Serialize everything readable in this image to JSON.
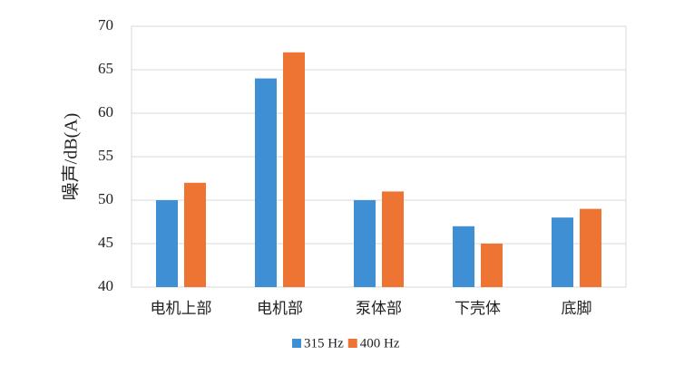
{
  "chart_data": {
    "type": "bar",
    "y_label": "噪声/dB(A)",
    "categories": [
      "电机上部",
      "电机部",
      "泵体部",
      "下壳体",
      "底脚"
    ],
    "series": [
      {
        "name": "315 Hz",
        "color": "#3f8fd4",
        "values": [
          50,
          64,
          50,
          47,
          48
        ]
      },
      {
        "name": "400 Hz",
        "color": "#ed7433",
        "values": [
          52,
          67,
          51,
          45,
          49
        ]
      }
    ],
    "ylim": [
      40,
      70
    ],
    "yticks": [
      40,
      45,
      50,
      55,
      60,
      65,
      70
    ],
    "grid": true,
    "legend": "bottom"
  }
}
